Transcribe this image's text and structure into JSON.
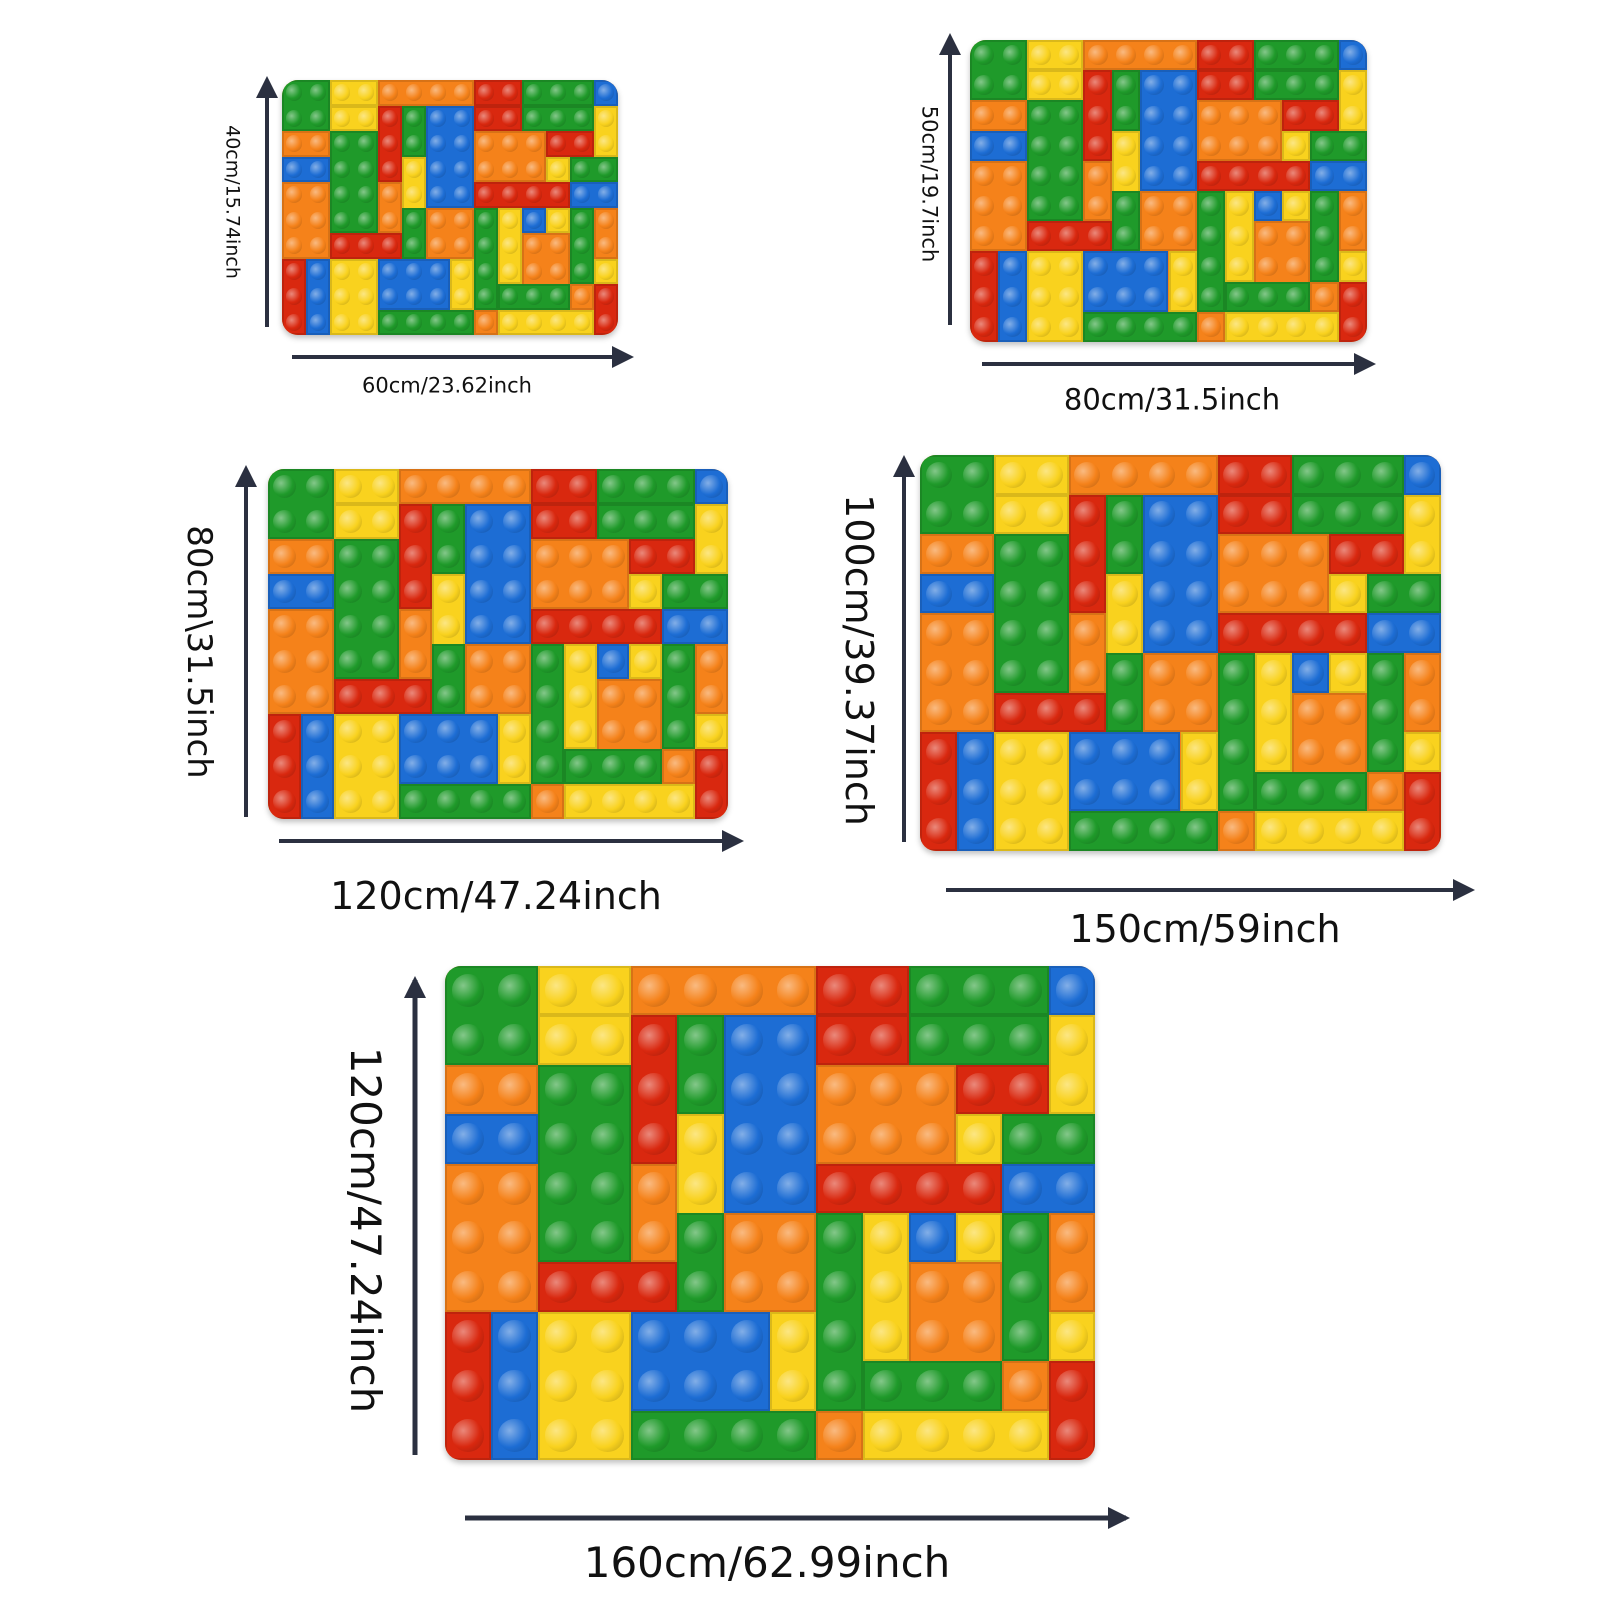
{
  "colors": {
    "green": "#1f9a2a",
    "yellow": "#f9d21e",
    "orange": "#f5821a",
    "red": "#d9280f",
    "blue": "#1d6dd4",
    "arrow": "#2b3040"
  },
  "mats": [
    {
      "width_label": "60cm/23.62inch",
      "height_label": "40cm/15.74inch"
    },
    {
      "width_label": "80cm/31.5inch",
      "height_label": "50cm/19.7inch"
    },
    {
      "width_label": "120cm/47.24inch",
      "height_label": "80cm\\31.5inch"
    },
    {
      "width_label": "150cm/59inch",
      "height_label": "100cm/39.37inch"
    },
    {
      "width_label": "160cm/62.99inch",
      "height_label": "120cm/47.24inch"
    }
  ]
}
